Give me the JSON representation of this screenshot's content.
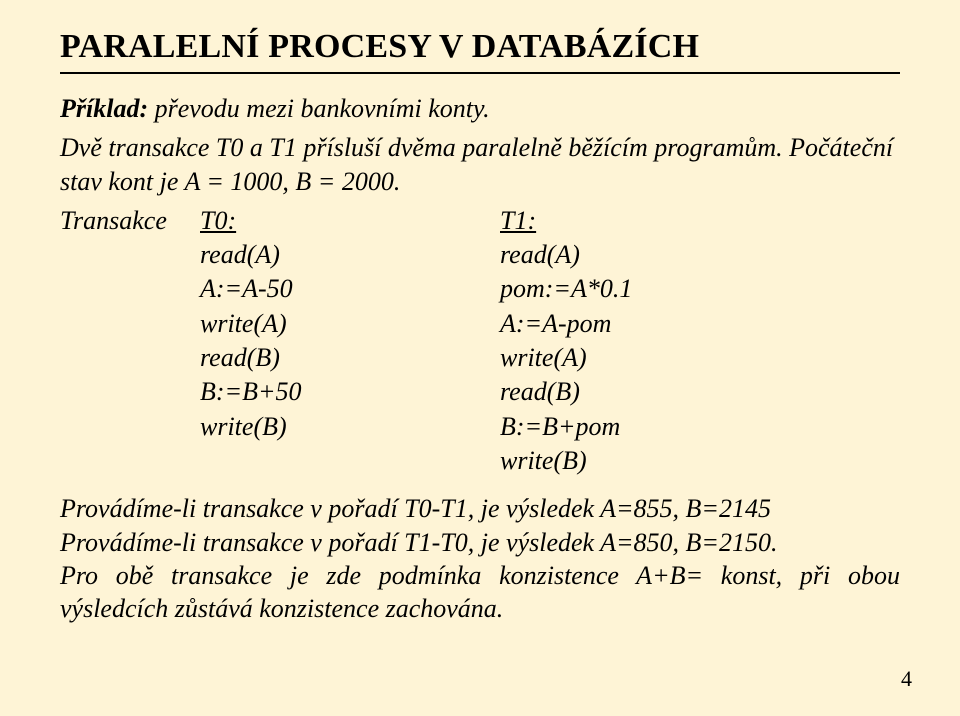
{
  "title": "PARALELNÍ PROCESY V DATABÁZÍCH",
  "intro1_prefix": "Příklad:",
  "intro1_rest": " převodu mezi bankovními konty.",
  "intro2": "Dvě transakce T0 a T1 přísluší dvěma paralelně běžícím programům. Počáteční stav kont je A = 1000, B = 2000.",
  "trans": {
    "label": "Transakce",
    "t0_head": "T0:",
    "t1_head": "T1:",
    "t0_steps": [
      "read(A)",
      "A:=A-50",
      "write(A)",
      "read(B)",
      "B:=B+50",
      "write(B)"
    ],
    "t1_steps": [
      "read(A)",
      "pom:=A*0.1",
      "A:=A-pom",
      "write(A)",
      "read(B)",
      "B:=B+pom",
      "write(B)"
    ]
  },
  "result1": "Provádíme-li transakce v pořadí T0-T1, je výsledek A=855, B=2145",
  "result2": "Provádíme-li transakce v pořadí T1-T0, je výsledek A=850, B=2150.",
  "result3": "Pro obě transakce je zde podmínka konzistence A+B= konst, při obou výsledcích zůstává konzistence zachována.",
  "page_number": "4",
  "colors": {
    "background": "#fef4d6",
    "text": "#000000",
    "hr": "#000000"
  },
  "fontsizes": {
    "title": 34,
    "body": 26,
    "pagenum": 22
  }
}
